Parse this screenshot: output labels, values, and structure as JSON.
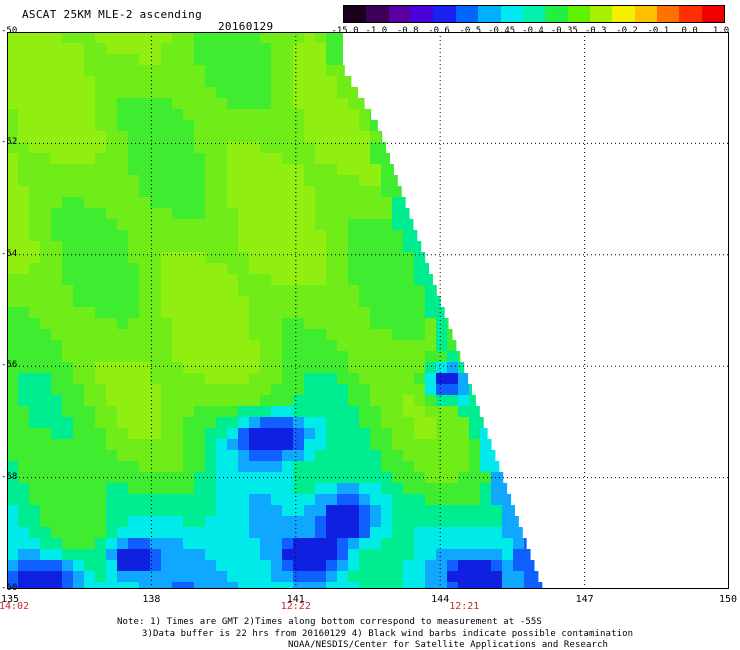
{
  "header": {
    "title": "ASCAT 25KM MLE-2 ascending",
    "date": "20160129"
  },
  "colorbar": {
    "labels": [
      "-15.0",
      "-1.0",
      "-0.8",
      "-0.6",
      "-0.5",
      "-0.45",
      "-0.4",
      "-0.35",
      "-0.3",
      "-0.2",
      "-0.1",
      "0.0",
      "1.0"
    ],
    "colors": [
      "#1a001a",
      "#3c0058",
      "#5a00a0",
      "#4a00d8",
      "#1a20f0",
      "#0064ff",
      "#00b0ff",
      "#00e8f0",
      "#00f0b0",
      "#20f040",
      "#60f000",
      "#a8f000",
      "#f0f000",
      "#ffc000",
      "#ff7000",
      "#ff3000",
      "#f00000"
    ]
  },
  "map": {
    "lon_range": [
      135,
      150
    ],
    "lat_range": [
      -60,
      -50
    ],
    "lon_ticks": [
      "135",
      "138",
      "141",
      "144",
      "147",
      "150"
    ],
    "lat_ticks": [
      "-50",
      "-52",
      "-54",
      "-56",
      "-58",
      "-60"
    ],
    "times": [
      "14:02",
      "12:22",
      "12:21"
    ],
    "time_lons": [
      135,
      141,
      144.5
    ]
  },
  "notes": {
    "line1": "Note: 1) Times are GMT 2)Times along bottom correspond to measurement at -55S",
    "line2": "3)Data buffer is 22 hrs from 20160129 4) Black wind barbs indicate possible contamination",
    "line3": "NOAA/NESDIS/Center for Satellite Applications and Research"
  }
}
